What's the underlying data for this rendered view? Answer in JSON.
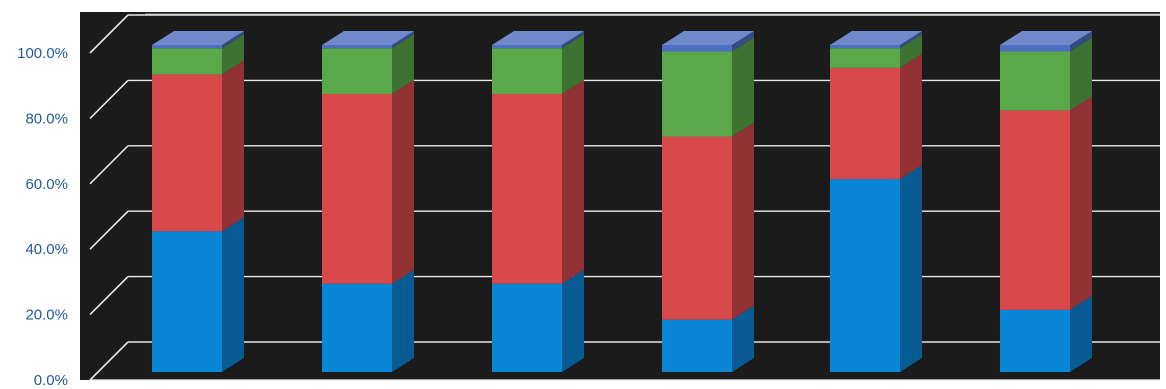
{
  "chart_data": {
    "type": "bar",
    "stacked": true,
    "three_d": true,
    "categories": [
      "",
      "",
      "",
      "",
      "",
      ""
    ],
    "series": [
      {
        "color": "#0a86d6",
        "values": [
          43,
          27,
          27,
          16,
          59,
          19
        ]
      },
      {
        "color": "#d8494c",
        "values": [
          48,
          58,
          58,
          56,
          34,
          61
        ]
      },
      {
        "color": "#5aa84a",
        "values": [
          8,
          14,
          14,
          26,
          6,
          18
        ]
      },
      {
        "color": "#4f6fc0",
        "values": [
          1,
          1,
          1,
          2,
          1,
          2
        ]
      }
    ],
    "ylim": [
      0,
      100
    ],
    "yticks": [
      "0.0%",
      "20.0%",
      "40.0%",
      "60.0%",
      "80.0%",
      "100.0%"
    ],
    "grid": true,
    "background": "#1b1b1b",
    "title": "",
    "xlabel": "",
    "ylabel": ""
  }
}
